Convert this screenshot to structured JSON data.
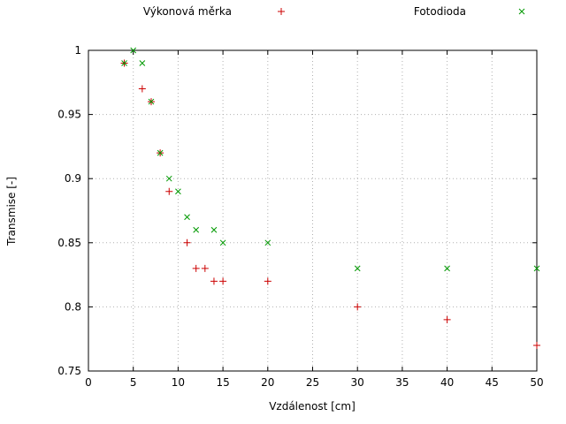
{
  "chart_data": {
    "type": "scatter",
    "title": "",
    "xlabel": "Vzdálenost [cm]",
    "ylabel": "Transmise [-]",
    "xlim": [
      0,
      50
    ],
    "ylim": [
      0.75,
      1.0
    ],
    "xticks": [
      0,
      5,
      10,
      15,
      20,
      25,
      30,
      35,
      40,
      45,
      50
    ],
    "yticks": [
      0.75,
      0.8,
      0.85,
      0.9,
      0.95,
      1.0
    ],
    "ytick_labels": [
      "0.75",
      "0.8",
      "0.85",
      "0.9",
      "0.95",
      "1"
    ],
    "grid": true,
    "grid_color": "#b0b0b0",
    "border_color": "#000000",
    "background_color": "#ffffff",
    "legend_position": "top-outside",
    "series": [
      {
        "name": "Výkonová měrka",
        "marker": "plus",
        "color": "#cc0000",
        "points": [
          [
            4,
            0.99
          ],
          [
            6,
            0.97
          ],
          [
            7,
            0.96
          ],
          [
            8,
            0.92
          ],
          [
            9,
            0.89
          ],
          [
            11,
            0.85
          ],
          [
            12,
            0.83
          ],
          [
            13,
            0.83
          ],
          [
            14,
            0.82
          ],
          [
            15,
            0.82
          ],
          [
            20,
            0.82
          ],
          [
            30,
            0.8
          ],
          [
            40,
            0.79
          ],
          [
            50,
            0.77
          ]
        ]
      },
      {
        "name": "Fotodioda",
        "marker": "x",
        "color": "#009900",
        "points": [
          [
            4,
            0.99
          ],
          [
            5,
            1.0
          ],
          [
            6,
            0.99
          ],
          [
            7,
            0.96
          ],
          [
            8,
            0.92
          ],
          [
            9,
            0.9
          ],
          [
            10,
            0.89
          ],
          [
            11,
            0.87
          ],
          [
            12,
            0.86
          ],
          [
            14,
            0.86
          ],
          [
            15,
            0.85
          ],
          [
            20,
            0.85
          ],
          [
            30,
            0.83
          ],
          [
            40,
            0.83
          ],
          [
            50,
            0.83
          ]
        ]
      }
    ]
  }
}
